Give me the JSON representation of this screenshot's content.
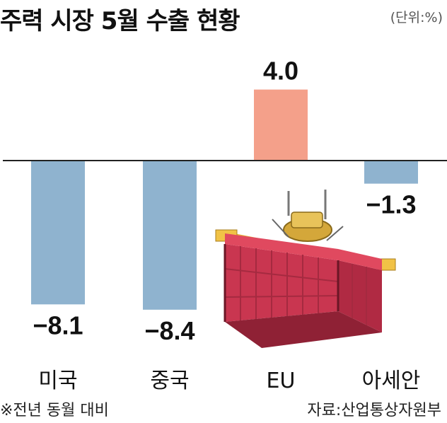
{
  "header": {
    "title": "주력 시장 5월 수출 현황",
    "unit": "(단위:%)"
  },
  "footer": {
    "footnote": "※전년 동월 대비",
    "source": "자료:산업통상자원부"
  },
  "colors": {
    "negative_bar": "#8fb3cf",
    "positive_bar": "#f4a08a",
    "baseline": "#222222",
    "container": "#e0495f"
  },
  "chart_data": {
    "type": "bar",
    "title": "주력 시장 5월 수출 현황",
    "unit": "(단위:%)",
    "categories": [
      "미국",
      "중국",
      "EU",
      "아세안"
    ],
    "values": [
      -8.1,
      -8.4,
      4.0,
      -1.3
    ],
    "value_labels": [
      "−8.1",
      "−8.4",
      "4.0",
      "−1.3"
    ],
    "ylim": [
      -9.5,
      5.5
    ],
    "grid": false,
    "legend": "none"
  }
}
